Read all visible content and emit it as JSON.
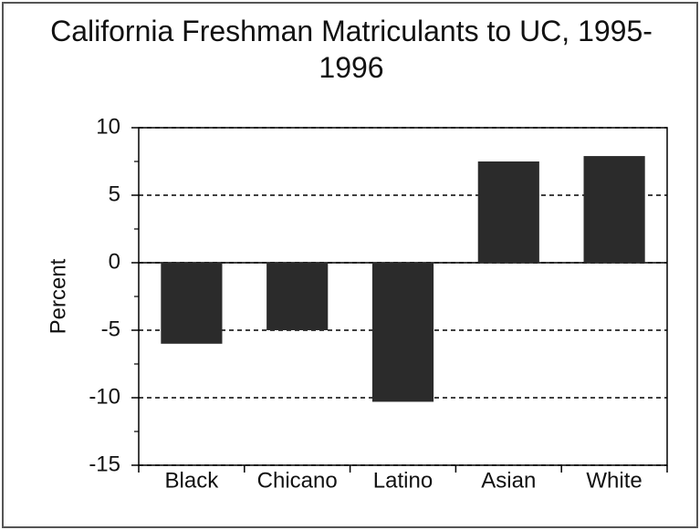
{
  "chart_data": {
    "type": "bar",
    "title": "California Freshman Matriculants to UC, 1995-1996",
    "ylabel": "Percent",
    "categories": [
      "Black",
      "Chicano",
      "Latino",
      "Asian",
      "White"
    ],
    "values": [
      -6,
      -5,
      -10.3,
      7.5,
      7.9
    ],
    "color": "#2b2b2b",
    "ylim": [
      -15,
      10
    ],
    "yticks": [
      -15,
      -10,
      -5,
      0,
      5,
      10
    ],
    "grid": true
  }
}
